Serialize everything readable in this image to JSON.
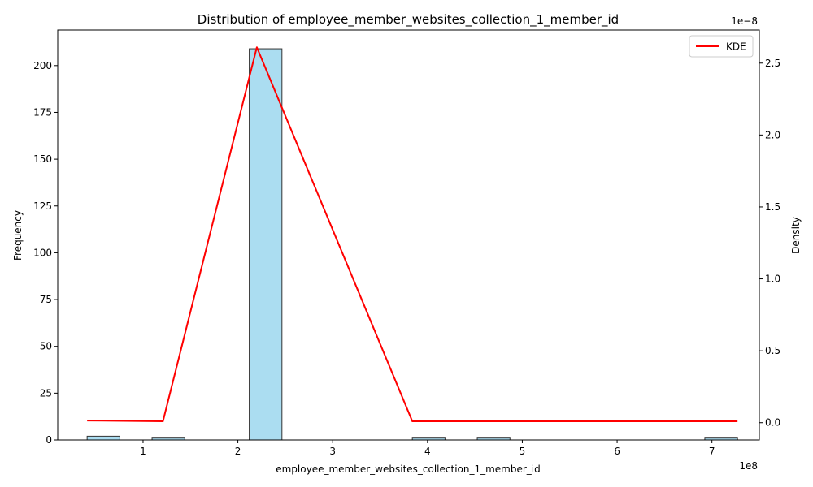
{
  "chart_data": {
    "type": "bar",
    "title": "Distribution of employee_member_websites_collection_1_member_id",
    "xlabel": "employee_member_websites_collection_1_member_id",
    "ylabel": "Frequency",
    "y2label": "Density",
    "x_offset_label": "1e8",
    "y2_offset_label": "1e−8",
    "xlim": [
      0.1,
      7.5
    ],
    "ylim": [
      0,
      219
    ],
    "y2lim": [
      -0.12,
      2.73
    ],
    "x_ticks": [
      1,
      2,
      3,
      4,
      5,
      6,
      7
    ],
    "y_ticks": [
      0,
      25,
      50,
      75,
      100,
      125,
      150,
      175,
      200
    ],
    "y2_ticks": [
      0.0,
      0.5,
      1.0,
      1.5,
      2.0,
      2.5
    ],
    "y2_tick_labels": [
      "0.0",
      "0.5",
      "1.0",
      "1.5",
      "2.0",
      "2.5"
    ],
    "grid": false,
    "legend_position": "top-right",
    "bar_color": "#87ceeb",
    "bar_edge_color": "#333333",
    "line_color": "#ff0000",
    "histogram": {
      "name": "Frequency",
      "bins": [
        {
          "x0": 0.41,
          "x1": 0.755,
          "count": 2
        },
        {
          "x0": 1.095,
          "x1": 1.44,
          "count": 1
        },
        {
          "x0": 2.12,
          "x1": 2.465,
          "count": 209
        },
        {
          "x0": 3.84,
          "x1": 4.185,
          "count": 1
        },
        {
          "x0": 4.525,
          "x1": 4.87,
          "count": 1
        },
        {
          "x0": 6.925,
          "x1": 7.27,
          "count": 1
        }
      ]
    },
    "series": [
      {
        "name": "KDE",
        "x": [
          0.41,
          1.21,
          2.2,
          3.84,
          4.53,
          7.27
        ],
        "values": [
          0.015,
          0.01,
          2.61,
          0.01,
          0.01,
          0.01
        ]
      }
    ]
  }
}
